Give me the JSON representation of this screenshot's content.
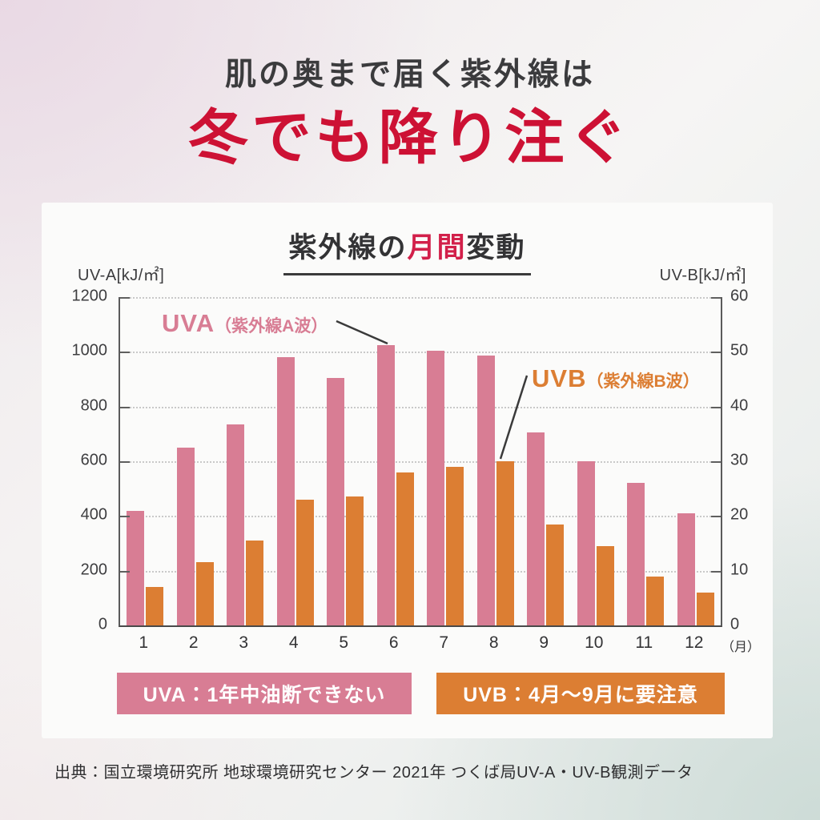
{
  "page": {
    "headline_sub": "肌の奥まで届く紫外線は",
    "headline_main": "冬でも降り注ぐ",
    "source": "出典：国立環境研究所 地球環境研究センター 2021年 つくば局UV-A・UV-B観測データ"
  },
  "colors": {
    "uva_pink": "#d87d94",
    "uvb_orange": "#dc7e33",
    "accent_red": "#d2204a",
    "headline_red": "#cd1134"
  },
  "chart_data": {
    "type": "bar",
    "title_parts": {
      "pre": "紫外線の",
      "highlight": "月間",
      "post": "変動"
    },
    "categories": [
      "1",
      "2",
      "3",
      "4",
      "5",
      "6",
      "7",
      "8",
      "9",
      "10",
      "11",
      "12"
    ],
    "x_unit_suffix": "（月）",
    "left_axis": {
      "label": "UV-A[kJ/㎡]",
      "range": [
        0,
        1200
      ],
      "ticks": [
        0,
        200,
        400,
        600,
        800,
        1000,
        1200
      ]
    },
    "right_axis": {
      "label": "UV-B[kJ/㎡]",
      "range": [
        0,
        60
      ],
      "ticks": [
        0,
        10,
        20,
        30,
        40,
        50,
        60
      ]
    },
    "grid": true,
    "series": [
      {
        "name": "UVA（紫外線A波）",
        "axis": "left",
        "color": "#d87d94",
        "values": [
          420,
          650,
          735,
          980,
          905,
          1025,
          1005,
          985,
          705,
          600,
          520,
          410
        ]
      },
      {
        "name": "UVB（紫外線B波）",
        "axis": "right",
        "color": "#dc7e33",
        "values": [
          7,
          11.5,
          15.5,
          23,
          23.5,
          28,
          29,
          30,
          18.5,
          14.5,
          9,
          6
        ]
      }
    ],
    "annotations": [
      {
        "big": "UVA",
        "small": "（紫外線A波）"
      },
      {
        "big": "UVB",
        "small": "（紫外線B波）"
      }
    ],
    "banners": [
      {
        "text": "UVA：1年中油断できない",
        "color": "#d87d94"
      },
      {
        "text": "UVB：4月～9月に要注意",
        "color": "#dc7e33"
      }
    ]
  }
}
